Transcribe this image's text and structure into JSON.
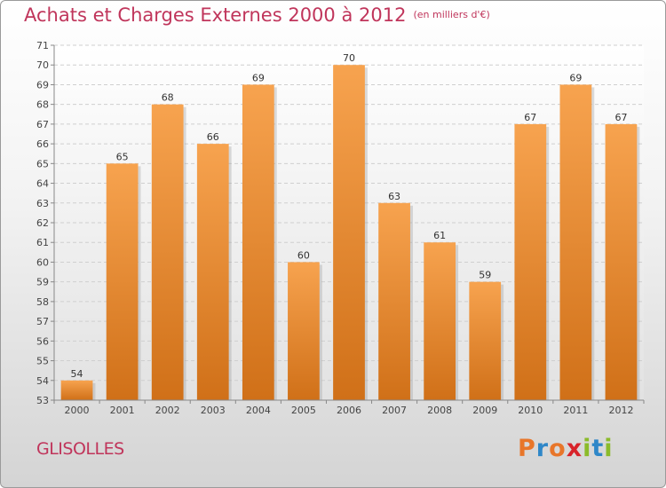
{
  "header": {
    "title": "Achats et Charges Externes 2000 à 2012",
    "unit": "(en milliers d'€)"
  },
  "footer": {
    "commune": "GLISOLLES",
    "logo": "Proxiti"
  },
  "colors": {
    "title": "#c0355b",
    "bar_top": "#f7a34f",
    "bar_bottom": "#d07018",
    "logo_letters": [
      "#e8762a",
      "#2f87c8",
      "#e8762a",
      "#d8232a",
      "#8bbb2a",
      "#2f87c8",
      "#8bbb2a"
    ]
  },
  "chart_data": {
    "type": "bar",
    "title": "Achats et Charges Externes 2000 à 2012",
    "subtitle": "(en milliers d'€)",
    "categories": [
      "2000",
      "2001",
      "2002",
      "2003",
      "2004",
      "2005",
      "2006",
      "2007",
      "2008",
      "2009",
      "2010",
      "2011",
      "2012"
    ],
    "values": [
      54,
      65,
      68,
      66,
      69,
      60,
      70,
      63,
      61,
      59,
      67,
      69,
      67
    ],
    "ylim": [
      53,
      71
    ],
    "yticks": [
      53,
      54,
      55,
      56,
      57,
      58,
      59,
      60,
      61,
      62,
      63,
      64,
      65,
      66,
      67,
      68,
      69,
      70,
      71
    ],
    "grid": true
  }
}
